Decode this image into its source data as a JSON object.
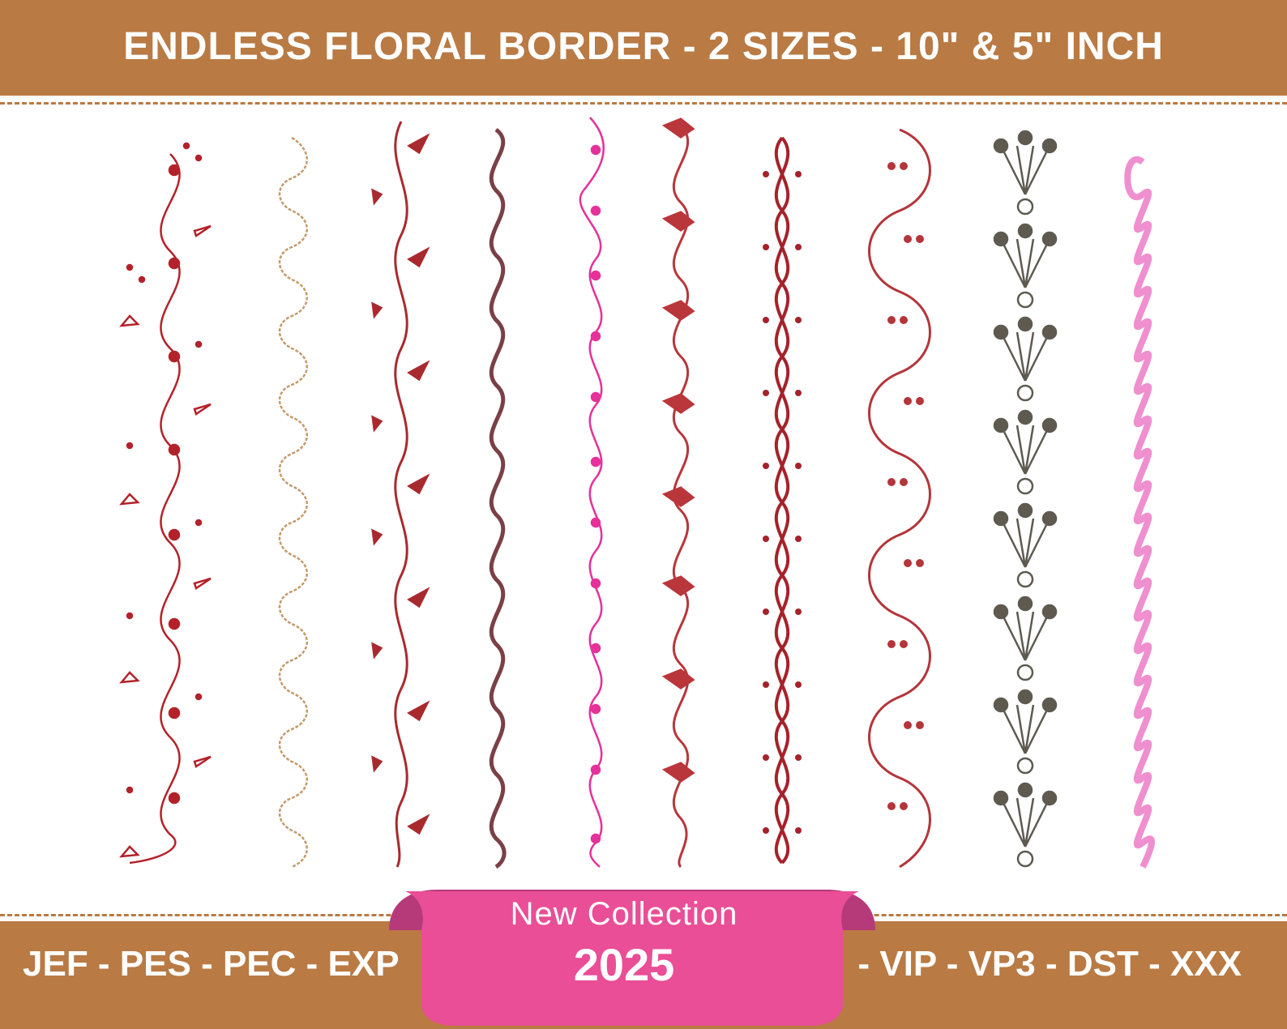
{
  "header": {
    "title": "ENDLESS FLORAL BORDER - 2 SIZES - 10\" & 5\" INCH"
  },
  "footer": {
    "formats_left": "JEF - PES - PEC - EXP",
    "formats_right": "- VIP - VP3 - DST - XXX"
  },
  "badge": {
    "line1": "New Collection",
    "line2": "2025"
  },
  "colors": {
    "band": "#b97a44",
    "badge_pink": "#e94e96",
    "badge_fold": "#b63a79",
    "border_colors": [
      "#b3222a",
      "#c49a6c",
      "#a82a2e",
      "#7a4046",
      "#e6309a",
      "#b9363a",
      "#a4232b",
      "#b4353a",
      "#5e5a50",
      "#ef8fcf"
    ]
  },
  "borders": [
    {
      "name": "leafy-vine-with-berries"
    },
    {
      "name": "tan-spiral-with-sprigs"
    },
    {
      "name": "red-leaf-vine"
    },
    {
      "name": "plum-spiral-wave"
    },
    {
      "name": "pink-dotted-wave"
    },
    {
      "name": "red-tulip-scroll"
    },
    {
      "name": "dark-red-interlaced-scroll"
    },
    {
      "name": "berry-scroll"
    },
    {
      "name": "grey-fan-and-dot"
    },
    {
      "name": "light-pink-spiral-chain"
    }
  ]
}
